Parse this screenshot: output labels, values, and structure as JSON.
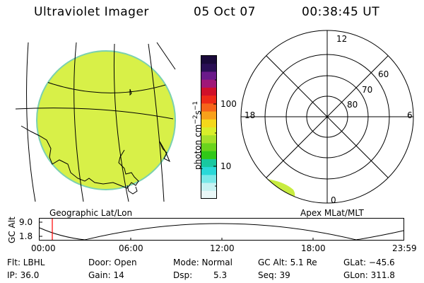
{
  "header": {
    "instrument": "Ultraviolet Imager",
    "date": "05 Oct 07",
    "time": "00:38:45 UT"
  },
  "geo_panel": {
    "label": "Geographic Lat/Lon",
    "fill_color": "#d8f048",
    "edge_color": "#7ad0b0"
  },
  "colorbar": {
    "label_main": "photon cm",
    "label_exp1": "−2",
    "label_mid": "s",
    "label_exp2": "−1",
    "ticks": [
      "100",
      "10"
    ],
    "colors_top_to_bottom": [
      "#1a0a3a",
      "#2a0f55",
      "#6a1a8a",
      "#a01878",
      "#d0102a",
      "#ee2a18",
      "#f6641a",
      "#f8a01a",
      "#f4d81a",
      "#d8ee2a",
      "#a6e02a",
      "#6ad41c",
      "#30c818",
      "#18c8a0",
      "#2ad8d8",
      "#7ae8e8",
      "#c6f2f2",
      "#eaf8f8"
    ]
  },
  "polar_panel": {
    "label": "Apex MLat/MLT",
    "mlt_labels": [
      "12",
      "18",
      "6",
      "0"
    ],
    "lat_labels": [
      "60",
      "70",
      "80"
    ],
    "blob_color": "#c8ec40"
  },
  "altitude_plot": {
    "axis_title": "GC Alt",
    "y_ticks": [
      "9.0",
      "1.8"
    ],
    "x_ticks": [
      "00:00",
      "06:00",
      "12:00",
      "18:00",
      "23:59"
    ],
    "marker_color": "#ff0000"
  },
  "status": {
    "flt": "Flt: LBHL",
    "ip": "IP: 36.0",
    "door": "Door: Open",
    "gain": "Gain: 14",
    "mode": "Mode: Normal",
    "dsp_label": "Dsp:",
    "dsp_value": "5.3",
    "gcalt": "GC Alt: 5.1 Re",
    "seq": "Seq: 39",
    "glat": "GLat: −45.6",
    "glon": "GLon: 311.8"
  }
}
